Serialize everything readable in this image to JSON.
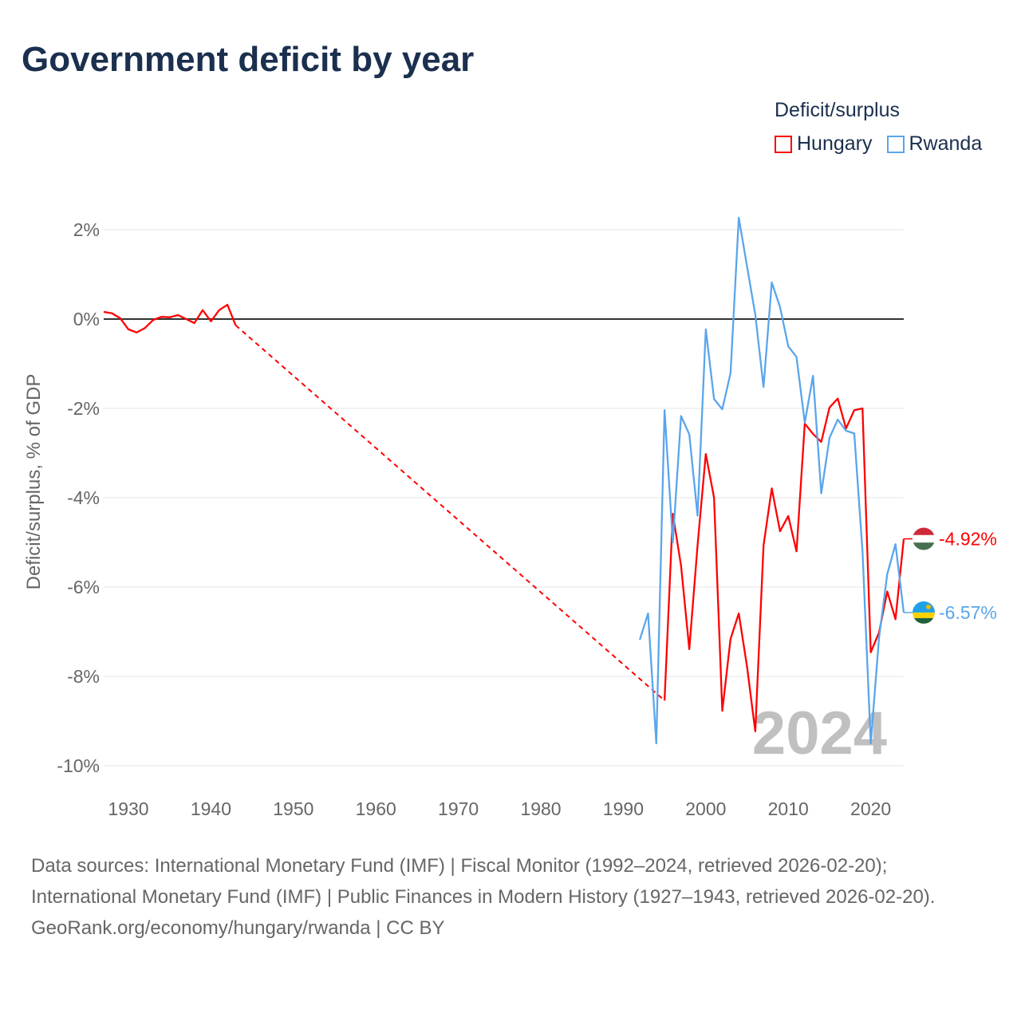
{
  "chart_data": {
    "type": "line",
    "title": "Government deficit by year",
    "ylabel": "Deficit/surplus, % of GDP",
    "xlabel": "",
    "xlim": [
      1927,
      2024
    ],
    "ylim": [
      -10,
      2
    ],
    "x_ticks": [
      1930,
      1940,
      1950,
      1960,
      1970,
      1980,
      1990,
      2000,
      2010,
      2020
    ],
    "y_ticks": [
      2,
      0,
      -2,
      -4,
      -6,
      -8,
      -10
    ],
    "y_tick_labels": [
      "2%",
      "0%",
      "-2%",
      "-4%",
      "-6%",
      "-8%",
      "-10%"
    ],
    "x_tick_labels": [
      "1930",
      "1940",
      "1950",
      "1960",
      "1970",
      "1980",
      "1990",
      "2000",
      "2010",
      "2020"
    ],
    "legend_title": "Deficit/surplus",
    "legend_position": "top-right",
    "watermark_year": "2024",
    "series": [
      {
        "name": "Hungary",
        "color": "#ff0000",
        "end_label": "-4.92%",
        "gap_dashed": [
          1943,
          1995
        ],
        "points": [
          [
            1927,
            0.16
          ],
          [
            1928,
            0.13
          ],
          [
            1929,
            0.02
          ],
          [
            1930,
            -0.23
          ],
          [
            1931,
            -0.3
          ],
          [
            1932,
            -0.2
          ],
          [
            1933,
            -0.02
          ],
          [
            1934,
            0.05
          ],
          [
            1935,
            0.04
          ],
          [
            1936,
            0.09
          ],
          [
            1937,
            0.0
          ],
          [
            1938,
            -0.09
          ],
          [
            1939,
            0.2
          ],
          [
            1940,
            -0.05
          ],
          [
            1941,
            0.2
          ],
          [
            1942,
            0.32
          ],
          [
            1943,
            -0.14
          ],
          [
            1995,
            -8.54
          ],
          [
            1996,
            -4.36
          ],
          [
            1997,
            -5.52
          ],
          [
            1998,
            -7.39
          ],
          [
            1999,
            -5.07
          ],
          [
            2000,
            -3.02
          ],
          [
            2001,
            -4.0
          ],
          [
            2002,
            -8.77
          ],
          [
            2003,
            -7.16
          ],
          [
            2004,
            -6.59
          ],
          [
            2005,
            -7.78
          ],
          [
            2006,
            -9.23
          ],
          [
            2007,
            -5.07
          ],
          [
            2008,
            -3.79
          ],
          [
            2009,
            -4.75
          ],
          [
            2010,
            -4.41
          ],
          [
            2011,
            -5.2
          ],
          [
            2012,
            -2.34
          ],
          [
            2013,
            -2.57
          ],
          [
            2014,
            -2.75
          ],
          [
            2015,
            -1.98
          ],
          [
            2016,
            -1.78
          ],
          [
            2017,
            -2.45
          ],
          [
            2018,
            -2.04
          ],
          [
            2019,
            -2.0
          ],
          [
            2020,
            -7.46
          ],
          [
            2021,
            -7.02
          ],
          [
            2022,
            -6.1
          ],
          [
            2023,
            -6.72
          ],
          [
            2024,
            -4.92
          ]
        ]
      },
      {
        "name": "Rwanda",
        "color": "#5aa5ec",
        "end_label": "-6.57%",
        "points": [
          [
            1992,
            -7.18
          ],
          [
            1993,
            -6.59
          ],
          [
            1994,
            -9.5
          ],
          [
            1995,
            -2.04
          ],
          [
            1996,
            -5.0
          ],
          [
            1997,
            -2.17
          ],
          [
            1998,
            -2.58
          ],
          [
            1999,
            -4.4
          ],
          [
            2000,
            -0.23
          ],
          [
            2001,
            -1.79
          ],
          [
            2002,
            -2.02
          ],
          [
            2003,
            -1.21
          ],
          [
            2004,
            2.27
          ],
          [
            2005,
            1.18
          ],
          [
            2006,
            0.1
          ],
          [
            2007,
            -1.52
          ],
          [
            2008,
            0.82
          ],
          [
            2009,
            0.27
          ],
          [
            2010,
            -0.61
          ],
          [
            2011,
            -0.85
          ],
          [
            2012,
            -2.32
          ],
          [
            2013,
            -1.27
          ],
          [
            2014,
            -3.9
          ],
          [
            2015,
            -2.66
          ],
          [
            2016,
            -2.25
          ],
          [
            2017,
            -2.5
          ],
          [
            2018,
            -2.56
          ],
          [
            2019,
            -5.2
          ],
          [
            2020,
            -9.5
          ],
          [
            2021,
            -7.14
          ],
          [
            2022,
            -5.71
          ],
          [
            2023,
            -5.04
          ],
          [
            2024,
            -6.57
          ]
        ]
      }
    ]
  },
  "footer": {
    "sources": "Data sources: International Monetary Fund (IMF) | Fiscal Monitor (1992–2024, retrieved 2026-02-20); International Monetary Fund (IMF) | Public Finances in Modern History (1927–1943, retrieved 2026-02-20).",
    "credit": "GeoRank.org/economy/hungary/rwanda | CC BY"
  }
}
